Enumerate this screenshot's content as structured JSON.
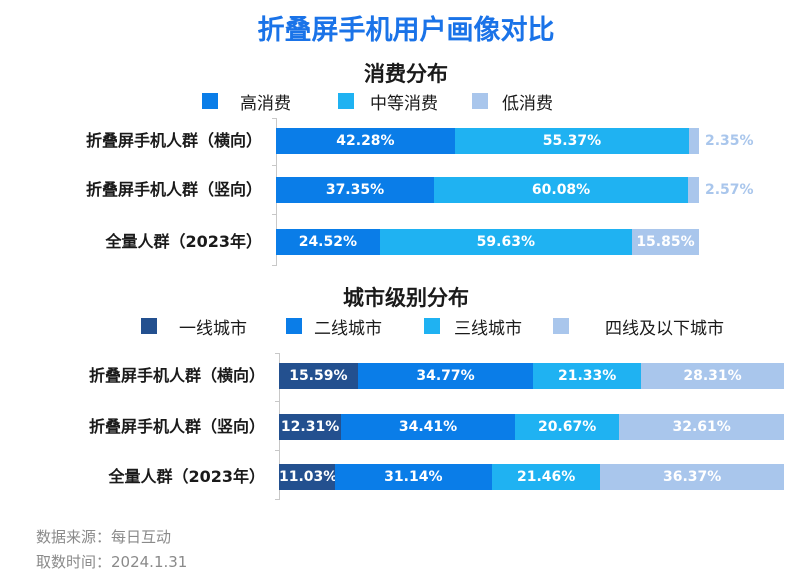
{
  "title": "折叠屏手机用户画像对比",
  "source_label": "数据来源：每日互动",
  "date_label": "取数时间：2024.1.31",
  "colors": {
    "title": "#1a73e8",
    "tier1": "#23508f",
    "tier2": "#0a7de8",
    "tier3": "#1fb2f2",
    "tier4": "#a9c6ec"
  },
  "chart_data": [
    {
      "type": "bar",
      "stacked": true,
      "orientation": "horizontal",
      "normalized": true,
      "title": "消费分布",
      "legend_position": "top",
      "categories": [
        "折叠屏手机人群（横向）",
        "折叠屏手机人群（竖向）",
        "全量人群（2023年）"
      ],
      "series": [
        {
          "name": "高消费",
          "color": "#0a7de8",
          "values": [
            42.28,
            37.35,
            24.52
          ],
          "labels": [
            "42.28%",
            "37.35%",
            "24.52%"
          ]
        },
        {
          "name": "中等消费",
          "color": "#1fb2f2",
          "values": [
            55.37,
            60.08,
            59.63
          ],
          "labels": [
            "55.37%",
            "60.08%",
            "59.63%"
          ]
        },
        {
          "name": "低消费",
          "color": "#a9c6ec",
          "values": [
            2.35,
            2.57,
            15.85
          ],
          "labels": [
            "2.35%",
            "2.57%",
            "15.85%"
          ]
        }
      ]
    },
    {
      "type": "bar",
      "stacked": true,
      "orientation": "horizontal",
      "normalized": true,
      "title": "城市级别分布",
      "legend_position": "top",
      "categories": [
        "折叠屏手机人群（横向）",
        "折叠屏手机人群（竖向）",
        "全量人群（2023年）"
      ],
      "series": [
        {
          "name": "一线城市",
          "color": "#23508f",
          "values": [
            15.59,
            12.31,
            11.03
          ],
          "labels": [
            "15.59%",
            "12.31%",
            "11.03%"
          ]
        },
        {
          "name": "二线城市",
          "color": "#0a7de8",
          "values": [
            34.77,
            34.41,
            31.14
          ],
          "labels": [
            "34.77%",
            "34.41%",
            "31.14%"
          ]
        },
        {
          "name": "三线城市",
          "color": "#1fb2f2",
          "values": [
            21.33,
            20.67,
            21.46
          ],
          "labels": [
            "21.33%",
            "20.67%",
            "21.46%"
          ]
        },
        {
          "name": "四线及以下城市",
          "color": "#a9c6ec",
          "values": [
            28.31,
            32.61,
            36.37
          ],
          "labels": [
            "28.31%",
            "32.61%",
            "36.37%"
          ]
        }
      ]
    }
  ]
}
